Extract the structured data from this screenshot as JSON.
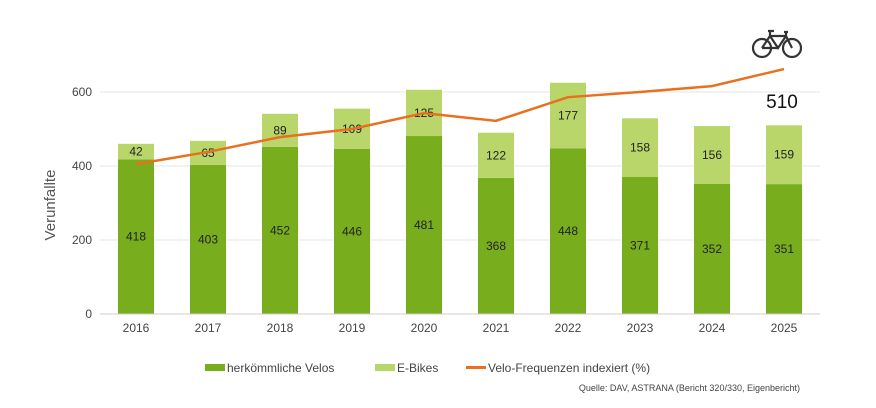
{
  "chart_data": {
    "type": "bar",
    "stacked": true,
    "categories": [
      "2016",
      "2017",
      "2018",
      "2019",
      "2020",
      "2021",
      "2022",
      "2023",
      "2024",
      "2025"
    ],
    "series": [
      {
        "name": "herkömmliche Velos",
        "color": "#78ad1d",
        "values": [
          418,
          403,
          452,
          446,
          481,
          368,
          448,
          371,
          352,
          351
        ]
      },
      {
        "name": "E-Bikes",
        "color": "#b9d66b",
        "values": [
          42,
          65,
          89,
          109,
          125,
          122,
          177,
          158,
          156,
          159
        ]
      },
      {
        "name": "Velo-Frequenzen indexiert (%)",
        "type": "line",
        "color": "#e8701e",
        "values": [
          405,
          438,
          478,
          500,
          543,
          522,
          586,
          600,
          616,
          662
        ]
      }
    ],
    "ylabel": "Verunfallte",
    "xlabel": "",
    "ylim": [
      0,
      650
    ],
    "yticks": [
      0,
      200,
      400,
      600
    ],
    "grid": true,
    "legend": "bottom",
    "annotation": "510",
    "icon": "bicycle-icon"
  },
  "source": "Quelle: DAV, ASTRANA (Bericht 320/330, Eigenbericht)"
}
